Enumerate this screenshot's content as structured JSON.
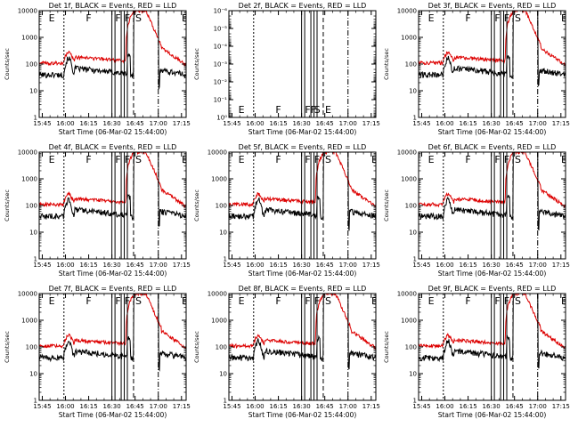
{
  "chart_data": [
    {
      "type": "line",
      "title": "Det 1f, BLACK = Events, RED = LLD",
      "xlabel": "Start Time (06-Mar-02 15:44:00)",
      "ylabel": "Counts/sec",
      "yscale": "log",
      "ylim": [
        1,
        10000
      ],
      "ytick_labels": [
        "1",
        "10",
        "100",
        "1000",
        "10000"
      ],
      "xlim_minutes": [
        -1,
        94
      ],
      "xtick_labels": [
        "15:45",
        "16:00",
        "16:15",
        "16:30",
        "16:45",
        "17:00",
        "17:15"
      ],
      "has_data": true,
      "markers": [
        "E",
        "F",
        "F",
        "F",
        "S",
        "E"
      ],
      "series": [
        {
          "name": "BLACK = Events",
          "color": "#000000"
        },
        {
          "name": "RED = LLD",
          "color": "#dd0000"
        }
      ]
    },
    {
      "type": "line",
      "title": "Det 2f, BLACK = Events, RED = LLD",
      "xlabel": "Start Time (06-Mar-02 15:44:00)",
      "ylabel": "Counts/sec",
      "yscale": "log",
      "ylim": [
        1,
        1e-06
      ],
      "ytick_labels": [
        "10⁰",
        "10⁻¹",
        "10⁻²",
        "10⁻³",
        "10⁻⁴",
        "10⁻⁵",
        "10⁻⁶"
      ],
      "xlim_minutes": [
        -1,
        94
      ],
      "xtick_labels": [
        "15:45",
        "16:00",
        "16:15",
        "16:30",
        "16:45",
        "17:00",
        "17:15"
      ],
      "has_data": false,
      "markers": [
        "E",
        "F",
        "FF",
        "S",
        "E"
      ],
      "series": []
    },
    {
      "type": "line",
      "title": "Det 3f, BLACK = Events, RED = LLD",
      "xlabel": "Start Time (06-Mar-02 15:44:00)",
      "ylabel": "Counts/sec",
      "yscale": "log",
      "ylim": [
        1,
        10000
      ],
      "ytick_labels": [
        "1",
        "10",
        "100",
        "1000",
        "10000"
      ],
      "xlim_minutes": [
        -1,
        94
      ],
      "xtick_labels": [
        "15:45",
        "16:00",
        "16:15",
        "16:30",
        "16:45",
        "17:00",
        "17:15"
      ],
      "has_data": true,
      "markers": [
        "E",
        "F",
        "F",
        "F",
        "S",
        "E"
      ],
      "series": [
        {
          "name": "BLACK = Events",
          "color": "#000000"
        },
        {
          "name": "RED = LLD",
          "color": "#dd0000"
        }
      ]
    },
    {
      "type": "line",
      "title": "Det 4f, BLACK = Events, RED = LLD",
      "xlabel": "Start Time (06-Mar-02 15:44:00)",
      "ylabel": "Counts/sec",
      "yscale": "log",
      "ylim": [
        1,
        10000
      ],
      "ytick_labels": [
        "1",
        "10",
        "100",
        "1000",
        "10000"
      ],
      "xlim_minutes": [
        -1,
        94
      ],
      "xtick_labels": [
        "15:45",
        "16:00",
        "16:15",
        "16:30",
        "16:45",
        "17:00",
        "17:15"
      ],
      "has_data": true,
      "markers": [
        "E",
        "F",
        "F",
        "F",
        "S",
        "E"
      ],
      "series": [
        {
          "name": "BLACK = Events",
          "color": "#000000"
        },
        {
          "name": "RED = LLD",
          "color": "#dd0000"
        }
      ]
    },
    {
      "type": "line",
      "title": "Det 5f, BLACK = Events, RED = LLD",
      "xlabel": "Start Time (06-Mar-02 15:44:00)",
      "ylabel": "Counts/sec",
      "yscale": "log",
      "ylim": [
        1,
        10000
      ],
      "ytick_labels": [
        "1",
        "10",
        "100",
        "1000",
        "10000"
      ],
      "xlim_minutes": [
        -1,
        94
      ],
      "xtick_labels": [
        "15:45",
        "16:00",
        "16:15",
        "16:30",
        "16:45",
        "17:00",
        "17:15"
      ],
      "has_data": true,
      "markers": [
        "E",
        "F",
        "F",
        "F",
        "S",
        "E"
      ],
      "series": [
        {
          "name": "BLACK = Events",
          "color": "#000000"
        },
        {
          "name": "RED = LLD",
          "color": "#dd0000"
        }
      ]
    },
    {
      "type": "line",
      "title": "Det 6f, BLACK = Events, RED = LLD",
      "xlabel": "Start Time (06-Mar-02 15:44:00)",
      "ylabel": "Counts/sec",
      "yscale": "log",
      "ylim": [
        1,
        10000
      ],
      "ytick_labels": [
        "1",
        "10",
        "100",
        "1000",
        "10000"
      ],
      "xlim_minutes": [
        -1,
        94
      ],
      "xtick_labels": [
        "15:45",
        "16:00",
        "16:15",
        "16:30",
        "16:45",
        "17:00",
        "17:15"
      ],
      "has_data": true,
      "markers": [
        "E",
        "F",
        "F",
        "F",
        "S",
        "E"
      ],
      "series": [
        {
          "name": "BLACK = Events",
          "color": "#000000"
        },
        {
          "name": "RED = LLD",
          "color": "#dd0000"
        }
      ]
    },
    {
      "type": "line",
      "title": "Det 7f, BLACK = Events, RED = LLD",
      "xlabel": "Start Time (06-Mar-02 15:44:00)",
      "ylabel": "Counts/sec",
      "yscale": "log",
      "ylim": [
        1,
        10000
      ],
      "ytick_labels": [
        "1",
        "10",
        "100",
        "1000",
        "10000"
      ],
      "xlim_minutes": [
        -1,
        94
      ],
      "xtick_labels": [
        "15:45",
        "16:00",
        "16:15",
        "16:30",
        "16:45",
        "17:00",
        "17:15"
      ],
      "has_data": true,
      "markers": [
        "E",
        "F",
        "F",
        "F",
        "S",
        "E"
      ],
      "series": [
        {
          "name": "BLACK = Events",
          "color": "#000000"
        },
        {
          "name": "RED = LLD",
          "color": "#dd0000"
        }
      ]
    },
    {
      "type": "line",
      "title": "Det 8f, BLACK = Events, RED = LLD",
      "xlabel": "Start Time (06-Mar-02 15:44:00)",
      "ylabel": "Counts/sec",
      "yscale": "log",
      "ylim": [
        1,
        10000
      ],
      "ytick_labels": [
        "1",
        "10",
        "100",
        "1000",
        "10000"
      ],
      "xlim_minutes": [
        -1,
        94
      ],
      "xtick_labels": [
        "15:45",
        "16:00",
        "16:15",
        "16:30",
        "16:45",
        "17:00",
        "17:15"
      ],
      "has_data": true,
      "markers": [
        "E",
        "F",
        "F",
        "F",
        "S",
        "E"
      ],
      "series": [
        {
          "name": "BLACK = Events",
          "color": "#000000"
        },
        {
          "name": "RED = LLD",
          "color": "#dd0000"
        }
      ]
    },
    {
      "type": "line",
      "title": "Det 9f, BLACK = Events, RED = LLD",
      "xlabel": "Start Time (06-Mar-02 15:44:00)",
      "ylabel": "Counts/sec",
      "yscale": "log",
      "ylim": [
        1,
        10000
      ],
      "ytick_labels": [
        "1",
        "10",
        "100",
        "1000",
        "10000"
      ],
      "xlim_minutes": [
        -1,
        94
      ],
      "xtick_labels": [
        "15:45",
        "16:00",
        "16:15",
        "16:30",
        "16:45",
        "17:00",
        "17:15"
      ],
      "has_data": true,
      "markers": [
        "E",
        "F",
        "F",
        "F",
        "S",
        "E"
      ],
      "series": [
        {
          "name": "BLACK = Events",
          "color": "#000000"
        },
        {
          "name": "RED = LLD",
          "color": "#dd0000"
        }
      ]
    }
  ]
}
